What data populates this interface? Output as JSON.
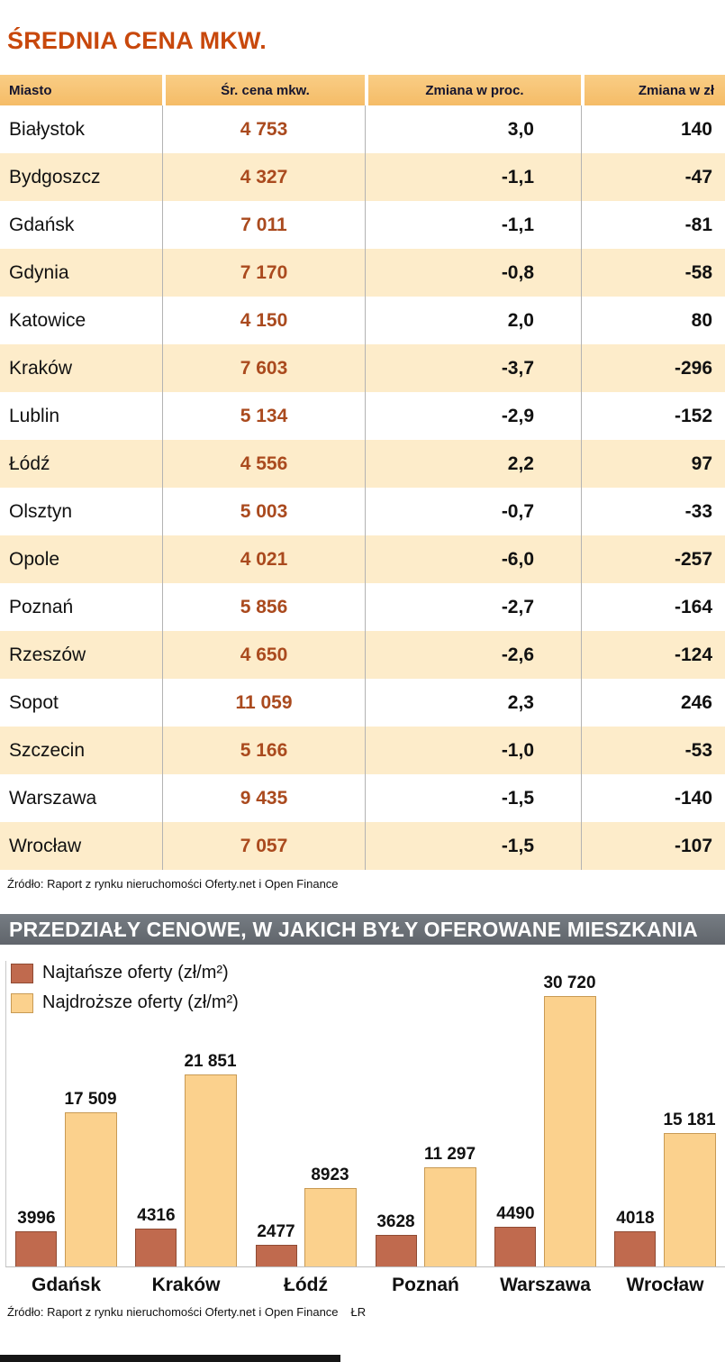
{
  "page": {
    "table_title": "ŚREDNIA CENA MKW.",
    "table_source": "Źródło: Raport z rynku nieruchomości Oferty.net i Open Finance",
    "chart_title": "PRZEDZIAŁY CENOWE, W JAKICH BYŁY OFEROWANE MIESZKANIA",
    "chart_source": "Źródło: Raport z rynku nieruchomości Oferty.net i Open Finance",
    "credit": "ŁR"
  },
  "colors": {
    "title_text": "#c8480c",
    "table_header_bg": "#f8c679",
    "row_alt_bg": "#fdecca",
    "price_text": "#aa4a1e",
    "chart_header_bg": "#6d7279",
    "cheap_bar": "#c06a4e",
    "expensive_bar": "#fbd18d"
  },
  "chart_data": [
    {
      "type": "table",
      "title": "ŚREDNIA CENA MKW.",
      "columns": [
        "Miasto",
        "Śr. cena mkw.",
        "Zmiana w proc.",
        "Zmiana w zł"
      ],
      "rows": [
        [
          "Białystok",
          "4 753",
          "3,0",
          "140"
        ],
        [
          "Bydgoszcz",
          "4 327",
          "-1,1",
          "-47"
        ],
        [
          "Gdańsk",
          "7 011",
          "-1,1",
          "-81"
        ],
        [
          "Gdynia",
          "7 170",
          "-0,8",
          "-58"
        ],
        [
          "Katowice",
          "4 150",
          "2,0",
          "80"
        ],
        [
          "Kraków",
          "7 603",
          "-3,7",
          "-296"
        ],
        [
          "Lublin",
          "5 134",
          "-2,9",
          "-152"
        ],
        [
          "Łódź",
          "4 556",
          "2,2",
          "97"
        ],
        [
          "Olsztyn",
          "5 003",
          "-0,7",
          "-33"
        ],
        [
          "Opole",
          "4 021",
          "-6,0",
          "-257"
        ],
        [
          "Poznań",
          "5 856",
          "-2,7",
          "-164"
        ],
        [
          "Rzeszów",
          "4 650",
          "-2,6",
          "-124"
        ],
        [
          "Sopot",
          "11 059",
          "2,3",
          "246"
        ],
        [
          "Szczecin",
          "5 166",
          "-1,0",
          "-53"
        ],
        [
          "Warszawa",
          "9 435",
          "-1,5",
          "-140"
        ],
        [
          "Wrocław",
          "7 057",
          "-1,5",
          "-107"
        ]
      ]
    },
    {
      "type": "bar",
      "title": "PRZEDZIAŁY CENOWE, W JAKICH BYŁY OFEROWANE MIESZKANIA",
      "categories": [
        "Gdańsk",
        "Kraków",
        "Łódź",
        "Poznań",
        "Warszawa",
        "Wrocław"
      ],
      "series": [
        {
          "name": "Najtańsze oferty (zł/m²)",
          "values": [
            3996,
            4316,
            2477,
            3628,
            4490,
            4018
          ],
          "labels": [
            "3996",
            "4316",
            "2477",
            "3628",
            "4490",
            "4018"
          ]
        },
        {
          "name": "Najdroższe oferty (zł/m²)",
          "values": [
            17509,
            21851,
            8923,
            11297,
            30720,
            15181
          ],
          "labels": [
            "17 509",
            "21 851",
            "8923",
            "11 297",
            "30 720",
            "15 181"
          ]
        }
      ],
      "ylim": [
        0,
        30720
      ],
      "grid": false,
      "legend_position": "top-left"
    }
  ]
}
